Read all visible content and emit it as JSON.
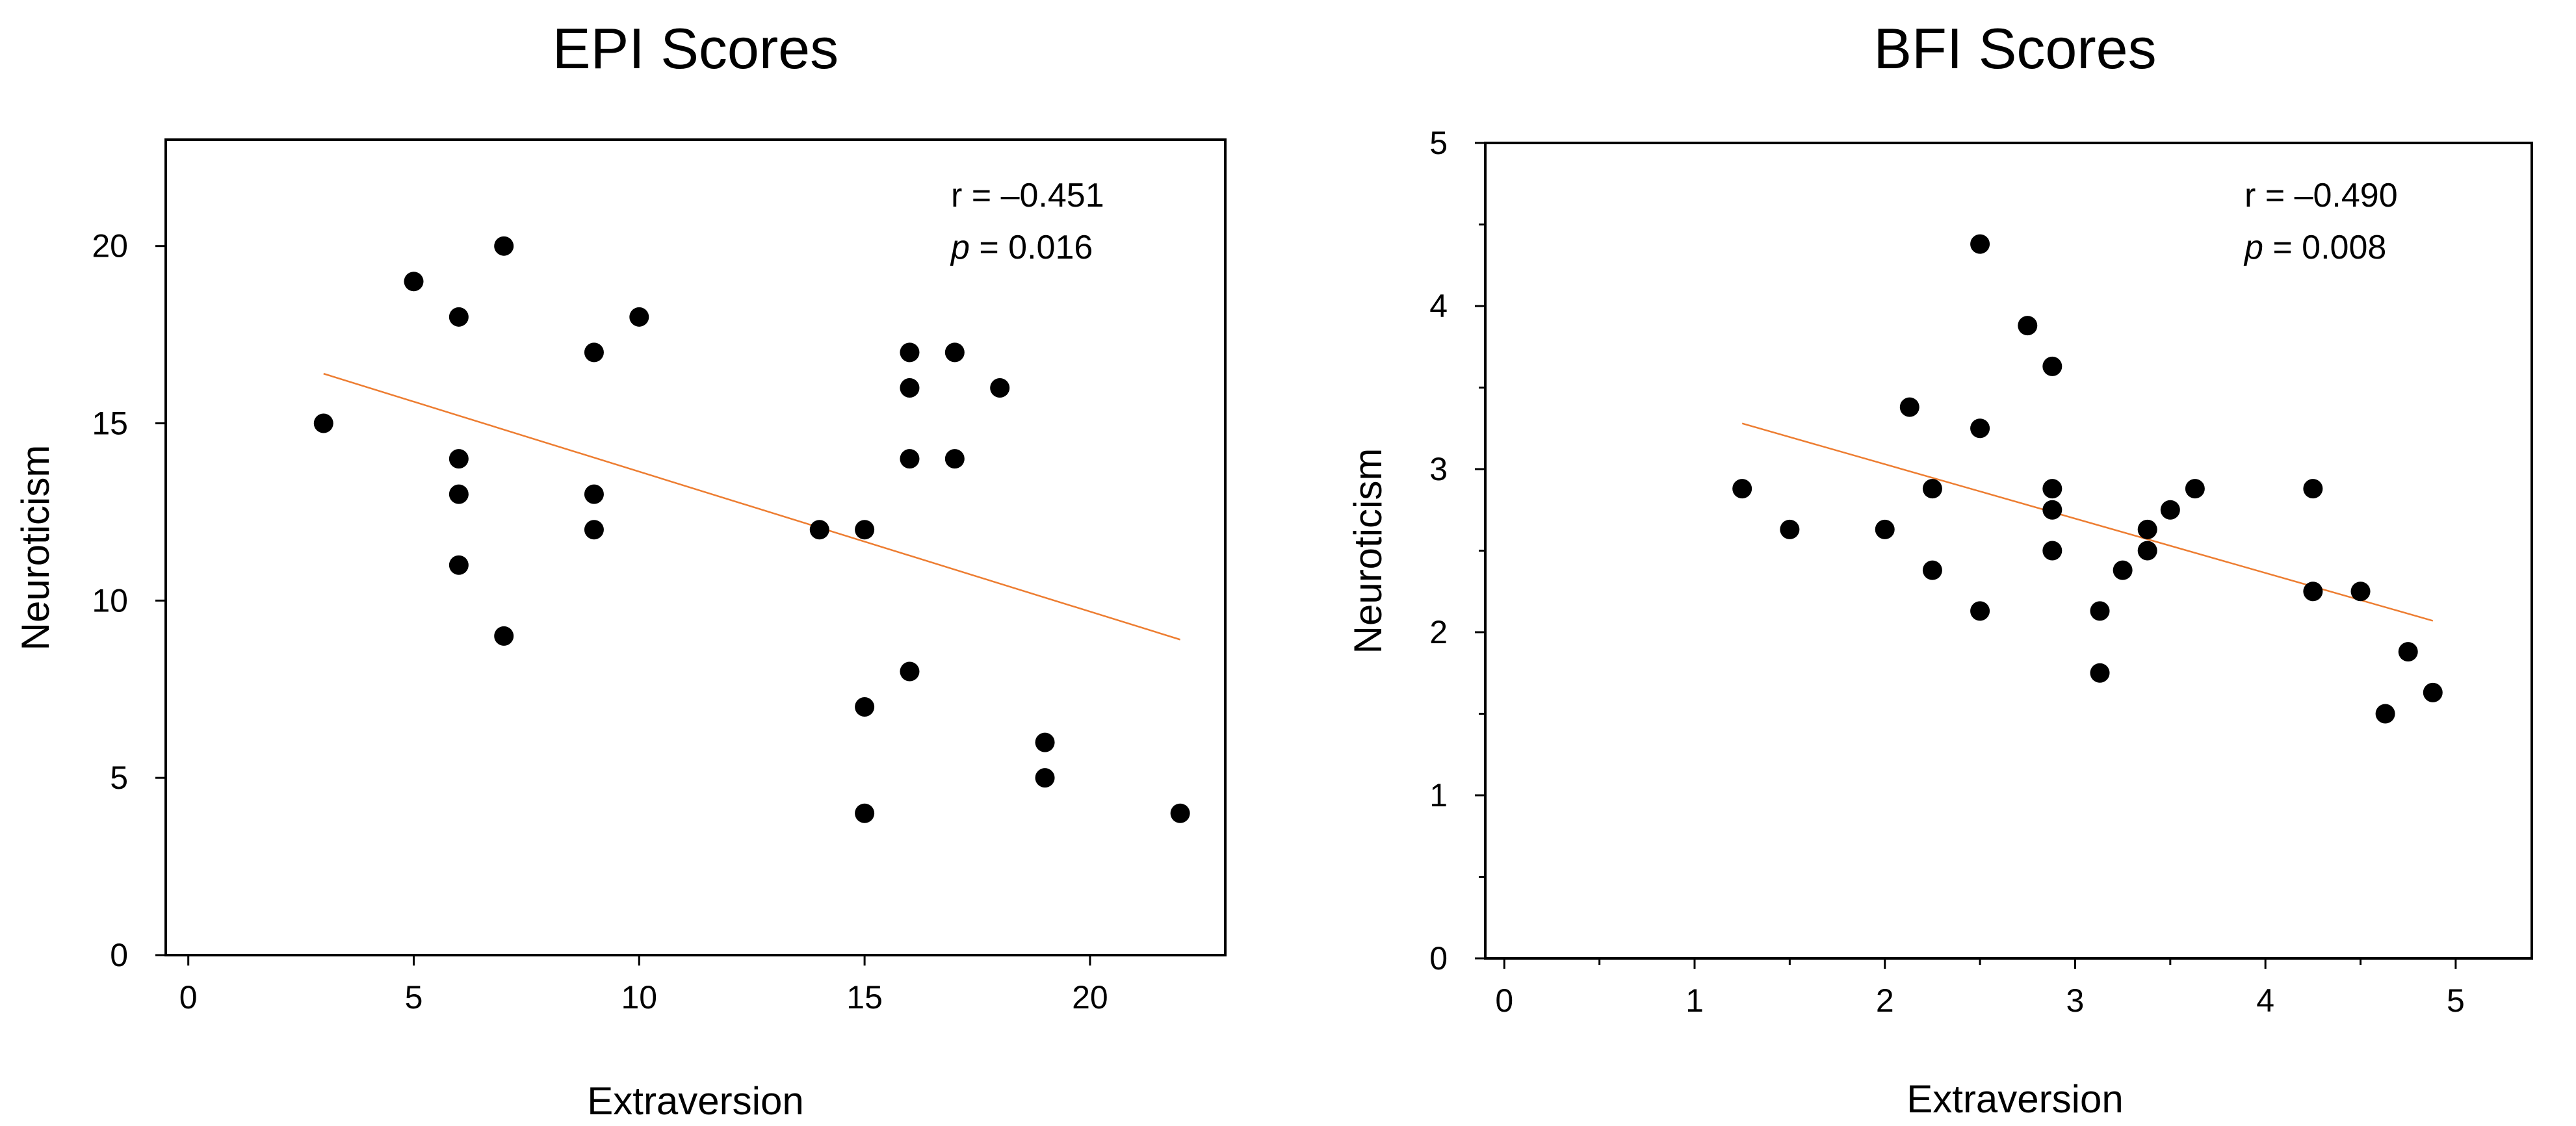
{
  "chart_data": [
    {
      "type": "scatter",
      "title": "EPI Scores",
      "xlabel": "Extraversion",
      "ylabel": "Neuroticism",
      "xlim": [
        -0.5,
        23
      ],
      "ylim": [
        0,
        23
      ],
      "xticks": [
        0,
        5,
        10,
        15,
        20
      ],
      "yticks": [
        0,
        5,
        10,
        15,
        20
      ],
      "grid": false,
      "annotation": {
        "r_text": "r = –0.451",
        "p_label": "p",
        "p_value": " = 0.016"
      },
      "trendline": {
        "x": [
          3,
          22
        ],
        "y": [
          16.4,
          8.9
        ],
        "color": "#ED7D31"
      },
      "points": [
        {
          "x": 3,
          "y": 15
        },
        {
          "x": 5,
          "y": 19
        },
        {
          "x": 6,
          "y": 18
        },
        {
          "x": 6,
          "y": 14
        },
        {
          "x": 6,
          "y": 13
        },
        {
          "x": 6,
          "y": 11
        },
        {
          "x": 7,
          "y": 20
        },
        {
          "x": 7,
          "y": 9
        },
        {
          "x": 9,
          "y": 17
        },
        {
          "x": 9,
          "y": 13
        },
        {
          "x": 9,
          "y": 12
        },
        {
          "x": 10,
          "y": 18
        },
        {
          "x": 14,
          "y": 12
        },
        {
          "x": 15,
          "y": 12
        },
        {
          "x": 15,
          "y": 7
        },
        {
          "x": 15,
          "y": 4
        },
        {
          "x": 16,
          "y": 17
        },
        {
          "x": 16,
          "y": 16
        },
        {
          "x": 16,
          "y": 14
        },
        {
          "x": 16,
          "y": 8
        },
        {
          "x": 17,
          "y": 17
        },
        {
          "x": 17,
          "y": 14
        },
        {
          "x": 18,
          "y": 16
        },
        {
          "x": 19,
          "y": 6
        },
        {
          "x": 19,
          "y": 5
        },
        {
          "x": 22,
          "y": 4
        }
      ]
    },
    {
      "type": "scatter",
      "title": "BFI Scores",
      "xlabel": "Extraversion",
      "ylabel": "Neuroticism",
      "xlim": [
        -0.1,
        5.4
      ],
      "ylim": [
        0,
        5
      ],
      "xticks": [
        0,
        1,
        2,
        3,
        4,
        5
      ],
      "xminor": [
        0.5,
        1.5,
        2.5,
        3.5,
        4.5
      ],
      "yticks": [
        0,
        1,
        2,
        3,
        4,
        5
      ],
      "yminor": [
        0.5,
        1.5,
        2.5,
        3.5,
        4.5
      ],
      "grid": false,
      "annotation": {
        "r_text": "r = –0.490",
        "p_label": "p",
        "p_value": " = 0.008"
      },
      "trendline": {
        "x": [
          1.25,
          4.88
        ],
        "y": [
          3.28,
          2.07
        ],
        "color": "#ED7D31"
      },
      "points": [
        {
          "x": 1.25,
          "y": 2.88
        },
        {
          "x": 1.5,
          "y": 2.63
        },
        {
          "x": 2.0,
          "y": 2.63
        },
        {
          "x": 2.13,
          "y": 3.38
        },
        {
          "x": 2.25,
          "y": 2.88
        },
        {
          "x": 2.25,
          "y": 2.38
        },
        {
          "x": 2.5,
          "y": 4.38
        },
        {
          "x": 2.5,
          "y": 3.25
        },
        {
          "x": 2.5,
          "y": 2.13
        },
        {
          "x": 2.75,
          "y": 3.88
        },
        {
          "x": 2.88,
          "y": 3.63
        },
        {
          "x": 2.88,
          "y": 2.88
        },
        {
          "x": 2.88,
          "y": 2.75
        },
        {
          "x": 2.88,
          "y": 2.5
        },
        {
          "x": 3.13,
          "y": 2.13
        },
        {
          "x": 3.13,
          "y": 1.75
        },
        {
          "x": 3.25,
          "y": 2.38
        },
        {
          "x": 3.38,
          "y": 2.63
        },
        {
          "x": 3.38,
          "y": 2.5
        },
        {
          "x": 3.5,
          "y": 2.75
        },
        {
          "x": 3.63,
          "y": 2.88
        },
        {
          "x": 4.25,
          "y": 2.88
        },
        {
          "x": 4.25,
          "y": 2.25
        },
        {
          "x": 4.5,
          "y": 2.25
        },
        {
          "x": 4.63,
          "y": 1.5
        },
        {
          "x": 4.75,
          "y": 1.88
        },
        {
          "x": 4.88,
          "y": 1.63
        }
      ]
    }
  ]
}
